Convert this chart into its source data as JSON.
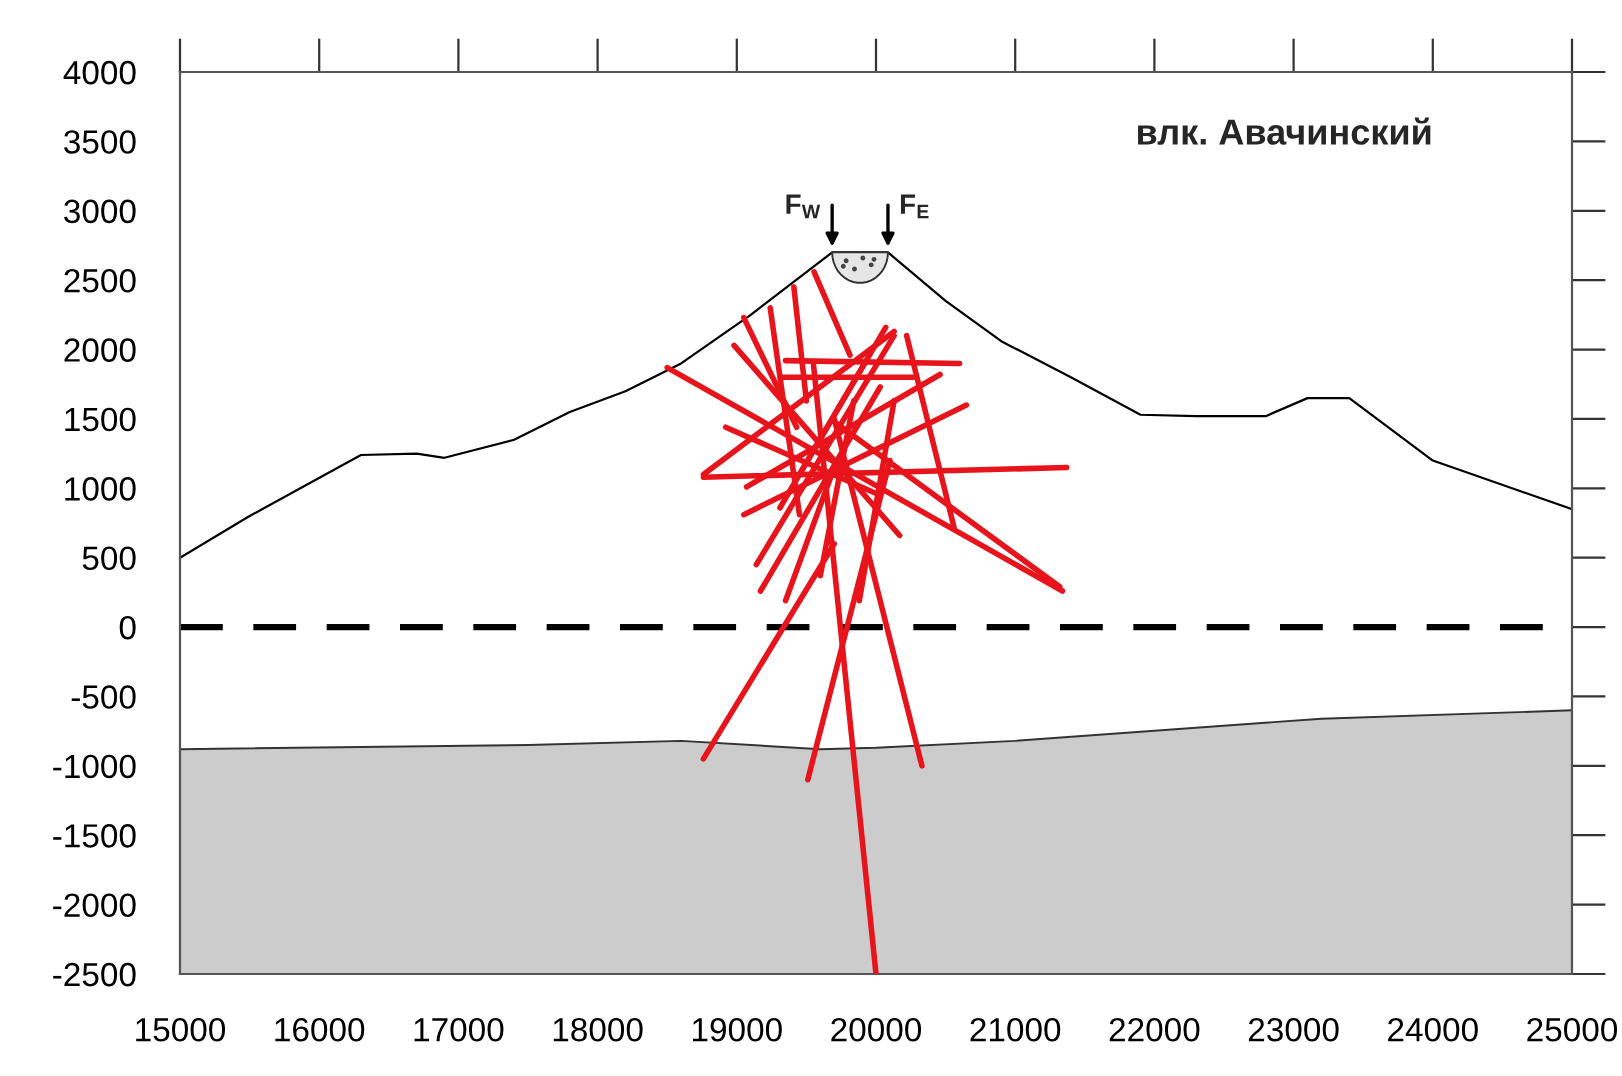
{
  "chart_data": {
    "type": "line",
    "title": "влк. Авачинский",
    "xlim": [
      15000,
      25000
    ],
    "xticks": [
      15000,
      16000,
      17000,
      18000,
      19000,
      20000,
      21000,
      22000,
      23000,
      24000,
      25000
    ],
    "ylim": [
      -2500,
      4000
    ],
    "yticks": [
      -2500,
      -2000,
      -1500,
      -1000,
      -500,
      0,
      500,
      1000,
      1500,
      2000,
      2500,
      3000,
      3500,
      4000
    ],
    "grid": false,
    "legend": false,
    "marker": "none",
    "annotations": [
      {
        "text": "F$_{W}$",
        "x": 19685,
        "y": 2700
      },
      {
        "text": "F$_{E}$",
        "x": 20086,
        "y": 2700
      }
    ],
    "ref_lines": [
      {
        "axis": "y",
        "value": 0,
        "label": null,
        "color": "#000000",
        "line_style": "dashed"
      }
    ],
    "series": [
      {
        "type": "area",
        "color": "#cccccc",
        "x": [
          15000,
          17500,
          18600,
          19600,
          20000,
          21000,
          23200,
          25000
        ],
        "values": [
          -880,
          -850,
          -820,
          -880,
          -870,
          -820,
          -660,
          -600
        ]
      },
      {
        "color": "#000000",
        "x": [
          15000,
          15500,
          16300,
          16700,
          16900,
          17400,
          17800,
          18200,
          18600,
          19100,
          19685,
          20086,
          20500,
          20900,
          21400,
          21900,
          22300,
          22800,
          23100,
          23400,
          24000,
          25000
        ],
        "values": [
          500,
          800,
          1240,
          1250,
          1220,
          1350,
          1550,
          1700,
          1900,
          2250,
          2700,
          2700,
          2350,
          2060,
          1800,
          1530,
          1520,
          1520,
          1650,
          1650,
          1200,
          850
        ]
      },
      {
        "type": "line",
        "color": "#e8141c",
        "x": [
          18500,
          21340
        ],
        "values": [
          1870,
          260
        ]
      },
      {
        "type": "line",
        "color": "#e8141c",
        "x": [
          18760,
          21370
        ],
        "values": [
          1080,
          1150
        ]
      },
      {
        "type": "line",
        "color": "#e8141c",
        "x": [
          19550,
          20000
        ],
        "values": [
          1900,
          -2500
        ]
      },
      {
        "type": "line",
        "color": "#e8141c",
        "x": [
          19700,
          18760
        ],
        "values": [
          600,
          -950
        ]
      },
      {
        "type": "line",
        "color": "#e8141c",
        "x": [
          20100,
          19510
        ],
        "values": [
          1200,
          -1100
        ]
      },
      {
        "type": "line",
        "color": "#e8141c",
        "x": [
          19700,
          20330
        ],
        "values": [
          1500,
          -1000
        ]
      },
      {
        "type": "line",
        "color": "#e8141c",
        "x": [
          19555,
          19813
        ],
        "values": [
          2560,
          1960
        ]
      },
      {
        "type": "line",
        "color": "#e8141c",
        "x": [
          19350,
          20600
        ],
        "values": [
          1920,
          1900
        ]
      },
      {
        "type": "line",
        "color": "#e8141c",
        "x": [
          19310,
          20270
        ],
        "values": [
          1800,
          1800
        ]
      },
      {
        "type": "line",
        "color": "#e8141c",
        "x": [
          19050,
          19430
        ],
        "values": [
          2230,
          1440
        ]
      },
      {
        "type": "line",
        "color": "#e8141c",
        "x": [
          19240,
          19450
        ],
        "values": [
          2300,
          810
        ]
      },
      {
        "type": "line",
        "color": "#e8141c",
        "x": [
          19410,
          19500
        ],
        "values": [
          2450,
          1630
        ]
      },
      {
        "type": "line",
        "color": "#e8141c",
        "x": [
          18980,
          20170
        ],
        "values": [
          2030,
          660
        ]
      },
      {
        "type": "line",
        "color": "#e8141c",
        "x": [
          18760,
          20130
        ],
        "values": [
          1100,
          2130
        ]
      },
      {
        "type": "line",
        "color": "#e8141c",
        "x": [
          19050,
          20650
        ],
        "values": [
          810,
          1600
        ]
      },
      {
        "type": "line",
        "color": "#e8141c",
        "x": [
          19170,
          20030
        ],
        "values": [
          260,
          1730
        ]
      },
      {
        "type": "line",
        "color": "#e8141c",
        "x": [
          19140,
          20130
        ],
        "values": [
          450,
          2100
        ]
      },
      {
        "type": "line",
        "color": "#e8141c",
        "x": [
          20220,
          20560
        ],
        "values": [
          2100,
          720
        ]
      },
      {
        "type": "line",
        "color": "#e8141c",
        "x": [
          19700,
          21320
        ],
        "values": [
          1480,
          290
        ]
      },
      {
        "type": "line",
        "color": "#e8141c",
        "x": [
          18920,
          20030
        ],
        "values": [
          1440,
          950
        ]
      },
      {
        "type": "line",
        "color": "#e8141c",
        "x": [
          19450,
          20070
        ],
        "values": [
          1100,
          2160
        ]
      },
      {
        "type": "line",
        "color": "#e8141c",
        "x": [
          19310,
          19930
        ],
        "values": [
          860,
          1920
        ]
      },
      {
        "type": "line",
        "color": "#e8141c",
        "x": [
          19070,
          20460
        ],
        "values": [
          1010,
          1820
        ]
      },
      {
        "type": "line",
        "color": "#e8141c",
        "x": [
          19600,
          19840
        ],
        "values": [
          370,
          1630
        ]
      },
      {
        "type": "line",
        "color": "#e8141c",
        "x": [
          19350,
          19700
        ],
        "values": [
          190,
          1150
        ]
      },
      {
        "type": "line",
        "color": "#e8141c",
        "x": [
          19880,
          20130
        ],
        "values": [
          190,
          1630
        ]
      }
    ]
  }
}
